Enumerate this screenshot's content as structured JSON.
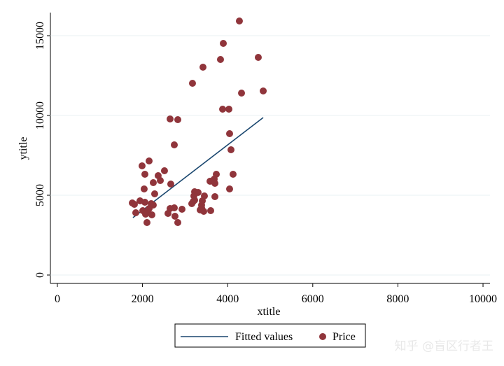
{
  "chart_data": {
    "type": "scatter",
    "xlabel": "xtitle",
    "ylabel": "ytitle",
    "xlim": [
      -164,
      10164
    ],
    "ylim": [
      -526,
      16447
    ],
    "xticks": [
      0,
      2000,
      4000,
      6000,
      8000,
      10000
    ],
    "yticks": [
      0,
      5000,
      10000,
      15000
    ],
    "grid": true,
    "legend": "bottom",
    "watermark": "知乎 @盲区行者王",
    "series": [
      {
        "name": "Fitted values",
        "kind": "line",
        "color": "#1a476f",
        "x": [
          1776,
          4836
        ],
        "values": [
          3596,
          9868
        ]
      },
      {
        "name": "Price",
        "kind": "points",
        "color": "#90353b",
        "x": [
          4276,
          3898,
          4720,
          3832,
          3421,
          3174,
          4326,
          4836,
          3882,
          4030,
          2648,
          2829,
          4046,
          2747,
          4079,
          2155,
          1990,
          4128,
          3734,
          2516,
          2056,
          2368,
          3684,
          2418,
          2253,
          3586,
          2664,
          3701,
          2039,
          4046,
          3224,
          3306,
          2286,
          3207,
          3454,
          3701,
          3224,
          3405,
          3191,
          1941,
          2056,
          1760,
          1809,
          2204,
          2253,
          3388,
          3388,
          3158,
          2648,
          2747,
          2155,
          2928,
          3355,
          3438,
          3602,
          2007,
          2122,
          1842,
          2072,
          2220,
          2599,
          2763,
          2105,
          2829
        ],
        "values": [
          15921,
          14518,
          13640,
          13509,
          13026,
          12018,
          11404,
          11535,
          10395,
          10395,
          9781,
          9737,
          8860,
          8158,
          7851,
          7149,
          6842,
          6316,
          6316,
          6535,
          6316,
          6228,
          6009,
          5921,
          5789,
          5877,
          5702,
          5746,
          5395,
          5395,
          5219,
          5175,
          5088,
          4956,
          4956,
          4912,
          4693,
          4649,
          4605,
          4649,
          4561,
          4518,
          4430,
          4474,
          4386,
          4386,
          4211,
          4474,
          4167,
          4211,
          4167,
          4123,
          4079,
          3991,
          4035,
          4035,
          3947,
          3904,
          3816,
          3772,
          3860,
          3684,
          3289,
          3289
        ]
      }
    ]
  }
}
